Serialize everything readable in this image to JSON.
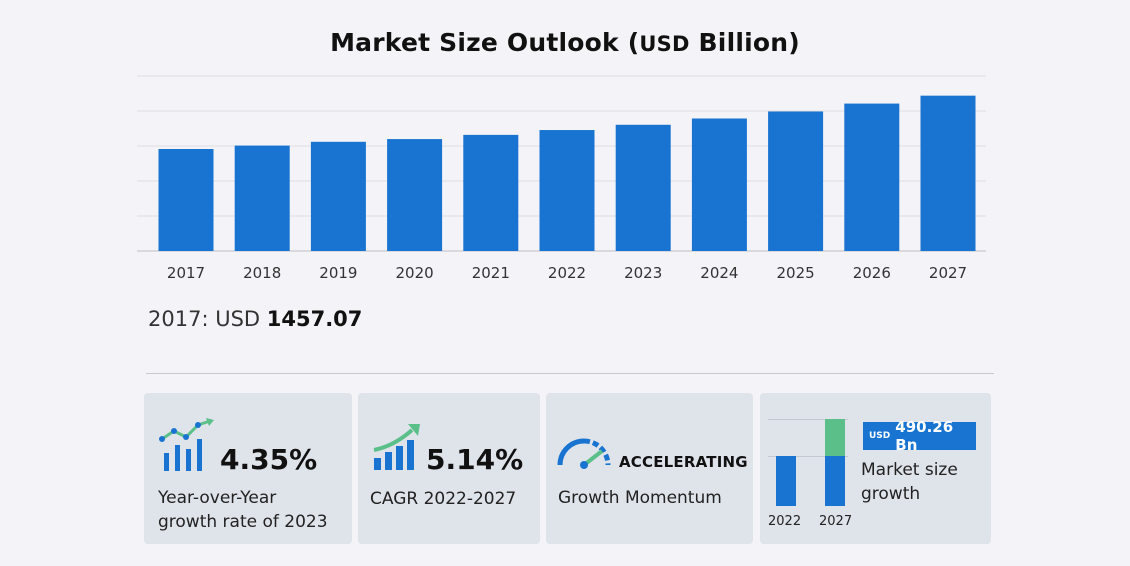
{
  "title": {
    "main": "Market Size Outlook (",
    "unit": "USD",
    "tail": " Billion)"
  },
  "chart_data": {
    "type": "bar",
    "title": "Market Size Outlook (USD Billion)",
    "categories": [
      "2017",
      "2018",
      "2019",
      "2020",
      "2021",
      "2022",
      "2023",
      "2024",
      "2025",
      "2026",
      "2027"
    ],
    "values": [
      1457.07,
      1506,
      1560,
      1599,
      1659,
      1728,
      1803,
      1893,
      1993,
      2106,
      2219
    ],
    "ylim": [
      0,
      2500
    ],
    "gridlines": [
      0,
      500,
      1000,
      1500,
      2000,
      2500
    ],
    "grid": true,
    "bar_color": "#1874d0",
    "xlabel": "",
    "ylabel": ""
  },
  "baseline": {
    "prefix": "2017: USD ",
    "value": "1457.07"
  },
  "cards": {
    "yoy": {
      "value": "4.35%",
      "caption_line1": "Year-over-Year",
      "caption_line2": "growth rate of 2023",
      "icon": "growth-chart-icon"
    },
    "cagr": {
      "value": "5.14%",
      "caption": "CAGR 2022-2027",
      "icon": "trend-bars-icon"
    },
    "momentum": {
      "value": "ACCELERATING",
      "caption": "Growth Momentum",
      "icon": "speedometer-icon"
    },
    "growth": {
      "currency": "USD",
      "value": "490.26 Bn",
      "caption_line1": "Market size",
      "caption_line2": "growth",
      "start_label": "2022",
      "end_label": "2027",
      "base_color": "#1874d0",
      "growth_color": "#5bbf8a"
    }
  },
  "colors": {
    "accent": "#1874d0",
    "background": "#f4f3f8",
    "card": "#dfe3ea"
  }
}
